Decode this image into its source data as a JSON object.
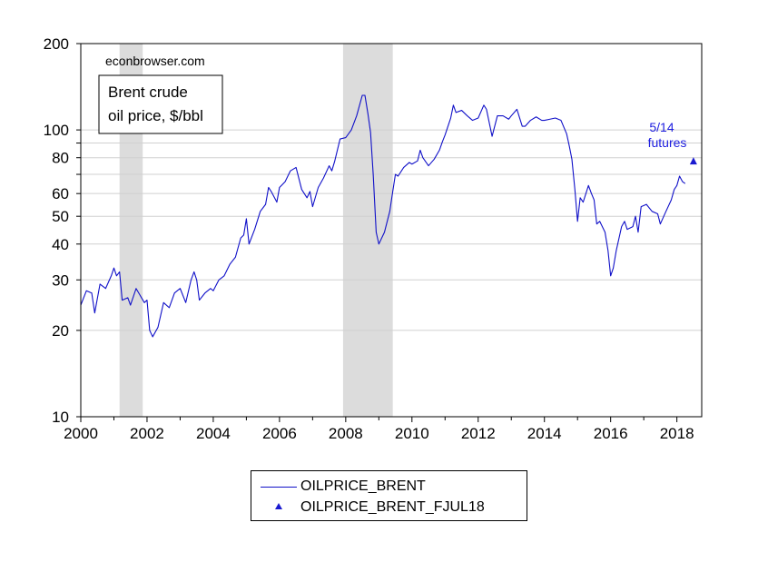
{
  "colors": {
    "series": "#1010c8",
    "recession": "#dcdcdc",
    "futures_text": "#2020e0",
    "grid": "#d0d0d0"
  },
  "chart_data": {
    "type": "line",
    "yscale": "log",
    "ylim": [
      10,
      200
    ],
    "xlim": [
      2000,
      2018.75
    ],
    "y_ticks_major": [
      10,
      20,
      30,
      40,
      50,
      60,
      80,
      100,
      200
    ],
    "y_ticks_minor": [
      70,
      90
    ],
    "x_ticks": [
      2000,
      2002,
      2004,
      2006,
      2008,
      2010,
      2012,
      2014,
      2016,
      2018
    ],
    "grid": true,
    "recession_shading": [
      [
        2001.17,
        2001.87
      ],
      [
        2007.92,
        2009.42
      ]
    ],
    "annotations": {
      "source": "econbrowser.com",
      "title_box": [
        "Brent crude",
        "oil price, $/bbl"
      ],
      "futures_label": [
        "5/14",
        "futures"
      ]
    },
    "legend": {
      "placement": "bottom-center",
      "entries": [
        "OILPRICE_BRENT",
        "OILPRICE_BRENT_FJUL18"
      ]
    },
    "series": [
      {
        "name": "OILPRICE_BRENT",
        "style": "line",
        "points": [
          [
            2000.0,
            24.5
          ],
          [
            2000.17,
            27.5
          ],
          [
            2000.33,
            27
          ],
          [
            2000.42,
            23
          ],
          [
            2000.58,
            29
          ],
          [
            2000.75,
            28
          ],
          [
            2000.92,
            31
          ],
          [
            2001.0,
            33
          ],
          [
            2001.08,
            31
          ],
          [
            2001.17,
            32
          ],
          [
            2001.25,
            25.5
          ],
          [
            2001.42,
            26
          ],
          [
            2001.5,
            24.5
          ],
          [
            2001.67,
            28
          ],
          [
            2001.75,
            27
          ],
          [
            2001.92,
            25
          ],
          [
            2002.0,
            25.5
          ],
          [
            2002.08,
            20
          ],
          [
            2002.17,
            19
          ],
          [
            2002.33,
            20.5
          ],
          [
            2002.5,
            25
          ],
          [
            2002.67,
            24
          ],
          [
            2002.83,
            27
          ],
          [
            2003.0,
            28
          ],
          [
            2003.17,
            25
          ],
          [
            2003.33,
            30
          ],
          [
            2003.42,
            32
          ],
          [
            2003.5,
            30
          ],
          [
            2003.58,
            25.5
          ],
          [
            2003.75,
            27
          ],
          [
            2003.92,
            28
          ],
          [
            2004.0,
            27.5
          ],
          [
            2004.17,
            30
          ],
          [
            2004.33,
            31
          ],
          [
            2004.5,
            34
          ],
          [
            2004.67,
            36
          ],
          [
            2004.83,
            42
          ],
          [
            2004.92,
            43
          ],
          [
            2005.0,
            49
          ],
          [
            2005.08,
            40
          ],
          [
            2005.25,
            45
          ],
          [
            2005.42,
            52
          ],
          [
            2005.58,
            55
          ],
          [
            2005.67,
            63
          ],
          [
            2005.75,
            61
          ],
          [
            2005.92,
            56
          ],
          [
            2006.0,
            63
          ],
          [
            2006.17,
            66
          ],
          [
            2006.33,
            72
          ],
          [
            2006.5,
            74
          ],
          [
            2006.67,
            62
          ],
          [
            2006.83,
            58
          ],
          [
            2006.92,
            61
          ],
          [
            2007.0,
            54
          ],
          [
            2007.17,
            63
          ],
          [
            2007.33,
            68
          ],
          [
            2007.5,
            75
          ],
          [
            2007.58,
            72
          ],
          [
            2007.67,
            78
          ],
          [
            2007.83,
            93
          ],
          [
            2008.0,
            94
          ],
          [
            2008.17,
            100
          ],
          [
            2008.33,
            112
          ],
          [
            2008.5,
            132
          ],
          [
            2008.58,
            132
          ],
          [
            2008.67,
            114
          ],
          [
            2008.75,
            98
          ],
          [
            2008.83,
            70
          ],
          [
            2008.92,
            44
          ],
          [
            2009.0,
            40
          ],
          [
            2009.17,
            44
          ],
          [
            2009.33,
            52
          ],
          [
            2009.42,
            61
          ],
          [
            2009.5,
            70
          ],
          [
            2009.58,
            69
          ],
          [
            2009.75,
            74
          ],
          [
            2009.92,
            77
          ],
          [
            2010.0,
            76
          ],
          [
            2010.17,
            78
          ],
          [
            2010.25,
            85
          ],
          [
            2010.33,
            80
          ],
          [
            2010.5,
            75
          ],
          [
            2010.67,
            79
          ],
          [
            2010.83,
            85
          ],
          [
            2010.92,
            91
          ],
          [
            2011.0,
            96
          ],
          [
            2011.17,
            110
          ],
          [
            2011.25,
            122
          ],
          [
            2011.33,
            115
          ],
          [
            2011.5,
            117
          ],
          [
            2011.67,
            112
          ],
          [
            2011.83,
            108
          ],
          [
            2012.0,
            110
          ],
          [
            2012.17,
            122
          ],
          [
            2012.25,
            118
          ],
          [
            2012.42,
            95
          ],
          [
            2012.58,
            112
          ],
          [
            2012.75,
            112
          ],
          [
            2012.92,
            109
          ],
          [
            2013.0,
            112
          ],
          [
            2013.17,
            118
          ],
          [
            2013.33,
            103
          ],
          [
            2013.42,
            103
          ],
          [
            2013.58,
            108
          ],
          [
            2013.75,
            111
          ],
          [
            2013.92,
            108
          ],
          [
            2014.0,
            108
          ],
          [
            2014.17,
            109
          ],
          [
            2014.33,
            110
          ],
          [
            2014.5,
            108
          ],
          [
            2014.67,
            97
          ],
          [
            2014.75,
            88
          ],
          [
            2014.83,
            79
          ],
          [
            2014.92,
            62
          ],
          [
            2015.0,
            48
          ],
          [
            2015.08,
            58
          ],
          [
            2015.17,
            56
          ],
          [
            2015.33,
            64
          ],
          [
            2015.42,
            60
          ],
          [
            2015.5,
            57
          ],
          [
            2015.58,
            47
          ],
          [
            2015.67,
            48
          ],
          [
            2015.83,
            44
          ],
          [
            2015.92,
            38
          ],
          [
            2016.0,
            31
          ],
          [
            2016.08,
            33
          ],
          [
            2016.17,
            38
          ],
          [
            2016.33,
            46
          ],
          [
            2016.42,
            48
          ],
          [
            2016.5,
            45
          ],
          [
            2016.67,
            46
          ],
          [
            2016.75,
            50
          ],
          [
            2016.83,
            44
          ],
          [
            2016.92,
            54
          ],
          [
            2017.08,
            55
          ],
          [
            2017.25,
            52
          ],
          [
            2017.42,
            51
          ],
          [
            2017.5,
            47
          ],
          [
            2017.67,
            52
          ],
          [
            2017.83,
            57
          ],
          [
            2017.92,
            62
          ],
          [
            2018.0,
            64
          ],
          [
            2018.08,
            69
          ],
          [
            2018.17,
            66
          ],
          [
            2018.25,
            65
          ]
        ]
      },
      {
        "name": "OILPRICE_BRENT_FJUL18",
        "style": "marker-triangle",
        "points": [
          [
            2018.5,
            78
          ]
        ]
      }
    ]
  }
}
